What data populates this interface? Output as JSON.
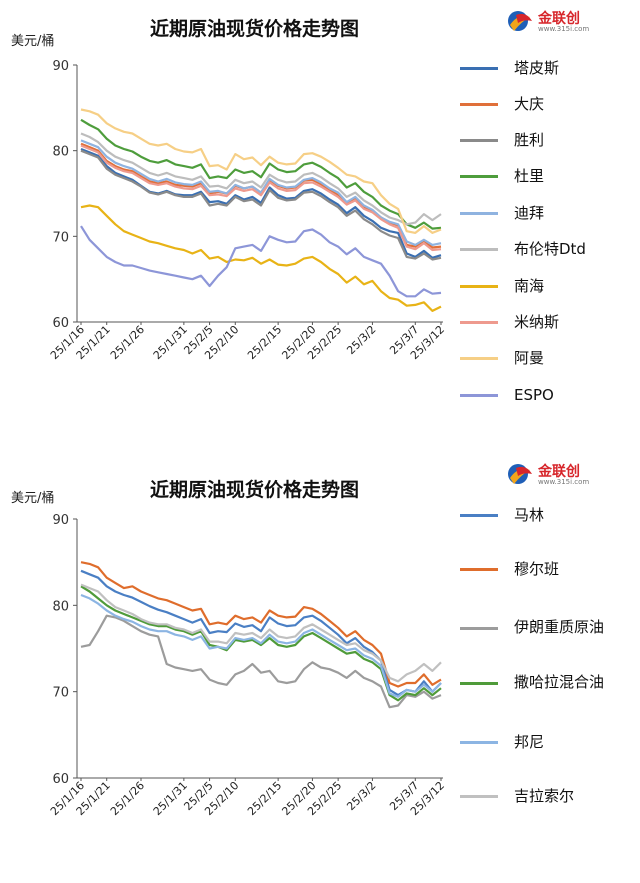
{
  "palette": {
    "tapis": "#3a6fb2",
    "daqing": "#e0703a",
    "shengli": "#8a8a8a",
    "duri": "#4e9d3c",
    "dubai": "#8fb3e0",
    "brent": "#bdbdbd",
    "nanhai": "#e8b316",
    "minas": "#ee9a8e",
    "oman": "#f6cf86",
    "espo": "#8d96d8",
    "marlin": "#4a7fc4",
    "murban": "#df6d2c",
    "iran_heavy": "#9c9c9c",
    "saharan": "#4f9b3a",
    "bonny": "#8cb5e3",
    "girassol": "#c0c0c0"
  },
  "top_chart": {
    "title": "近期原油现货价格走势图",
    "unit": "美元/桶",
    "logo_text": "金联创",
    "logo_sub": "www.315i.com"
  },
  "bottom_chart": {
    "title": "近期原油现货价格走势图",
    "unit": "美元/桶",
    "logo_text": "金联创",
    "logo_sub": "www.315i.com"
  },
  "chart_data": [
    {
      "type": "line",
      "title": "近期原油现货价格走势图",
      "ylabel": "美元/桶",
      "ylim": [
        60,
        90
      ],
      "yticks": [
        60,
        70,
        80,
        90
      ],
      "grid": false,
      "legend_position": "right",
      "x": [
        "25/1/16",
        "25/1/17",
        "25/1/20",
        "25/1/21",
        "25/1/22",
        "25/1/23",
        "25/1/24",
        "25/1/26",
        "25/1/27",
        "25/1/28",
        "25/1/29",
        "25/1/30",
        "25/1/31",
        "25/2/3",
        "25/2/4",
        "25/2/5",
        "25/2/6",
        "25/2/7",
        "25/2/10",
        "25/2/11",
        "25/2/12",
        "25/2/13",
        "25/2/14",
        "25/2/15",
        "25/2/17",
        "25/2/18",
        "25/2/19",
        "25/2/20",
        "25/2/21",
        "25/2/24",
        "25/2/25",
        "25/2/26",
        "25/2/27",
        "25/2/28",
        "25/3/2",
        "25/3/3",
        "25/3/4",
        "25/3/5",
        "25/3/6",
        "25/3/7",
        "25/3/10",
        "25/3/11",
        "25/3/12"
      ],
      "x_tick_labels": [
        "25/1/16",
        "25/1/21",
        "25/1/26",
        "25/1/31",
        "25/2/5",
        "25/2/10",
        "25/2/15",
        "25/2/20",
        "25/2/25",
        "25/3/2",
        "25/3/7",
        "25/3/12"
      ],
      "series": [
        {
          "name": "塔皮斯",
          "color_key": "tapis",
          "values": [
            80.2,
            79.8,
            79.4,
            78.2,
            77.4,
            77.0,
            76.6,
            75.9,
            75.2,
            75.0,
            75.3,
            74.9,
            74.8,
            74.8,
            75.2,
            74.0,
            74.1,
            73.8,
            74.8,
            74.3,
            74.6,
            73.9,
            75.7,
            74.8,
            74.4,
            74.5,
            75.3,
            75.5,
            75.0,
            74.3,
            73.7,
            72.7,
            73.4,
            72.4,
            71.8,
            71.0,
            70.6,
            70.4,
            68.0,
            67.6,
            68.3,
            67.5,
            67.8
          ]
        },
        {
          "name": "大庆",
          "color_key": "daqing",
          "values": [
            80.8,
            80.4,
            80.0,
            78.8,
            78.2,
            77.8,
            77.6,
            77.0,
            76.4,
            76.2,
            76.4,
            76.0,
            75.9,
            75.8,
            76.2,
            75.0,
            75.2,
            75.0,
            75.9,
            75.6,
            75.8,
            75.1,
            76.6,
            75.9,
            75.6,
            75.7,
            76.5,
            76.6,
            76.1,
            75.4,
            74.8,
            73.9,
            74.5,
            73.4,
            73.0,
            72.2,
            71.6,
            71.3,
            69.0,
            68.8,
            69.5,
            68.7,
            68.8
          ]
        },
        {
          "name": "胜利",
          "color_key": "shengli",
          "values": [
            80.0,
            79.6,
            79.2,
            77.9,
            77.2,
            76.8,
            76.4,
            75.8,
            75.1,
            74.9,
            75.2,
            74.8,
            74.6,
            74.6,
            75.0,
            73.6,
            73.8,
            73.6,
            74.6,
            74.1,
            74.3,
            73.6,
            75.4,
            74.5,
            74.2,
            74.3,
            75.1,
            75.2,
            74.7,
            74.0,
            73.4,
            72.4,
            73.0,
            72.0,
            71.4,
            70.6,
            70.1,
            69.8,
            67.6,
            67.4,
            68.0,
            67.3,
            67.5
          ]
        },
        {
          "name": "杜里",
          "color_key": "duri",
          "values": [
            83.6,
            83.0,
            82.5,
            81.4,
            80.6,
            80.2,
            79.9,
            79.3,
            78.8,
            78.6,
            78.9,
            78.4,
            78.2,
            78.0,
            78.4,
            76.8,
            77.0,
            76.8,
            77.8,
            77.4,
            77.6,
            76.9,
            78.5,
            77.8,
            77.5,
            77.6,
            78.4,
            78.6,
            78.1,
            77.4,
            76.8,
            75.7,
            76.2,
            75.2,
            74.6,
            73.6,
            73.0,
            72.6,
            71.4,
            71.0,
            71.6,
            70.9,
            71.0
          ]
        },
        {
          "name": "迪拜",
          "color_key": "dubai",
          "values": [
            81.2,
            80.8,
            80.4,
            79.3,
            78.6,
            78.2,
            77.9,
            77.3,
            76.7,
            76.4,
            76.7,
            76.3,
            76.1,
            76.0,
            76.4,
            75.2,
            75.3,
            75.0,
            76.0,
            75.6,
            75.8,
            75.1,
            76.7,
            76.0,
            75.7,
            75.8,
            76.6,
            76.8,
            76.3,
            75.6,
            75.1,
            74.0,
            74.6,
            73.6,
            73.1,
            72.2,
            71.7,
            71.4,
            69.4,
            69.0,
            69.6,
            69.0,
            69.2
          ]
        },
        {
          "name": "布伦特Dtd",
          "color_key": "brent",
          "values": [
            82.0,
            81.6,
            81.0,
            80.0,
            79.3,
            78.9,
            78.6,
            78.0,
            77.4,
            77.1,
            77.4,
            77.0,
            76.8,
            76.6,
            77.0,
            75.8,
            75.9,
            75.6,
            76.6,
            76.2,
            76.4,
            75.7,
            77.2,
            76.6,
            76.3,
            76.4,
            77.2,
            77.4,
            76.9,
            76.2,
            75.6,
            74.6,
            75.1,
            74.2,
            73.6,
            72.8,
            72.2,
            71.9,
            71.4,
            71.6,
            72.6,
            71.9,
            72.6
          ]
        },
        {
          "name": "南海",
          "color_key": "nanhai",
          "values": [
            73.4,
            73.6,
            73.4,
            72.4,
            71.4,
            70.6,
            70.2,
            69.8,
            69.4,
            69.2,
            68.9,
            68.6,
            68.4,
            68.0,
            68.4,
            67.4,
            67.6,
            67.0,
            67.3,
            67.2,
            67.5,
            66.8,
            67.3,
            66.7,
            66.6,
            66.8,
            67.4,
            67.6,
            67.0,
            66.2,
            65.6,
            64.6,
            65.3,
            64.4,
            64.8,
            63.6,
            62.8,
            62.6,
            61.9,
            62.0,
            62.3,
            61.3,
            61.8
          ]
        },
        {
          "name": "米纳斯",
          "color_key": "minas",
          "values": [
            80.6,
            80.2,
            79.8,
            78.6,
            78.0,
            77.6,
            77.4,
            76.8,
            76.2,
            76.0,
            76.2,
            75.8,
            75.6,
            75.5,
            75.9,
            74.8,
            74.9,
            74.7,
            75.6,
            75.3,
            75.5,
            74.8,
            76.3,
            75.6,
            75.3,
            75.4,
            76.2,
            76.3,
            75.8,
            75.2,
            74.6,
            73.7,
            74.2,
            73.2,
            72.8,
            72.0,
            71.4,
            71.0,
            68.8,
            68.5,
            69.2,
            68.4,
            68.5
          ]
        },
        {
          "name": "阿曼",
          "color_key": "oman",
          "values": [
            84.8,
            84.6,
            84.2,
            83.2,
            82.6,
            82.2,
            82.0,
            81.4,
            80.8,
            80.6,
            80.8,
            80.2,
            79.9,
            79.8,
            80.2,
            78.2,
            78.3,
            77.8,
            79.6,
            79.0,
            79.2,
            78.3,
            79.3,
            78.6,
            78.4,
            78.5,
            79.6,
            79.7,
            79.3,
            78.7,
            78.0,
            77.2,
            77.0,
            76.4,
            76.2,
            74.8,
            73.8,
            73.2,
            70.6,
            70.4,
            71.2,
            70.4,
            70.8
          ]
        },
        {
          "name": "ESPO",
          "color_key": "espo",
          "values": [
            71.2,
            69.6,
            68.6,
            67.6,
            67.0,
            66.6,
            66.6,
            66.3,
            66.0,
            65.8,
            65.6,
            65.4,
            65.2,
            65.0,
            65.4,
            64.2,
            65.4,
            66.4,
            68.6,
            68.8,
            69.0,
            68.3,
            70.0,
            69.6,
            69.3,
            69.4,
            70.6,
            70.8,
            70.2,
            69.3,
            68.8,
            67.9,
            68.6,
            67.6,
            67.2,
            66.8,
            65.4,
            63.6,
            63.0,
            63.0,
            63.8,
            63.3,
            63.4
          ]
        }
      ]
    },
    {
      "type": "line",
      "title": "近期原油现货价格走势图",
      "ylabel": "美元/桶",
      "ylim": [
        60,
        90
      ],
      "yticks": [
        60,
        70,
        80,
        90
      ],
      "grid": false,
      "legend_position": "right",
      "x": [
        "25/1/16",
        "25/1/17",
        "25/1/20",
        "25/1/21",
        "25/1/22",
        "25/1/23",
        "25/1/24",
        "25/1/26",
        "25/1/27",
        "25/1/28",
        "25/1/29",
        "25/1/30",
        "25/1/31",
        "25/2/3",
        "25/2/4",
        "25/2/5",
        "25/2/6",
        "25/2/7",
        "25/2/10",
        "25/2/11",
        "25/2/12",
        "25/2/13",
        "25/2/14",
        "25/2/15",
        "25/2/17",
        "25/2/18",
        "25/2/19",
        "25/2/20",
        "25/2/21",
        "25/2/24",
        "25/2/25",
        "25/2/26",
        "25/2/27",
        "25/2/28",
        "25/3/2",
        "25/3/3",
        "25/3/4",
        "25/3/5",
        "25/3/6",
        "25/3/7",
        "25/3/10",
        "25/3/11",
        "25/3/12"
      ],
      "x_tick_labels": [
        "25/1/16",
        "25/1/21",
        "25/1/26",
        "25/1/31",
        "25/2/5",
        "25/2/10",
        "25/2/15",
        "25/2/20",
        "25/2/25",
        "25/3/2",
        "25/3/7",
        "25/3/12"
      ],
      "series": [
        {
          "name": "马林",
          "color_key": "marlin",
          "values": [
            84.0,
            83.6,
            83.2,
            82.2,
            81.6,
            81.2,
            80.9,
            80.4,
            79.9,
            79.5,
            79.2,
            78.8,
            78.4,
            78.0,
            78.4,
            76.8,
            77.0,
            76.9,
            77.9,
            77.5,
            77.7,
            77.0,
            78.6,
            77.9,
            77.6,
            77.7,
            78.6,
            78.8,
            78.2,
            77.4,
            76.6,
            75.6,
            76.2,
            75.2,
            74.6,
            73.6,
            70.2,
            69.6,
            70.2,
            70.0,
            71.2,
            70.0,
            71.0
          ]
        },
        {
          "name": "穆尔班",
          "color_key": "murban",
          "values": [
            85.0,
            84.8,
            84.4,
            83.2,
            82.6,
            82.0,
            82.2,
            81.6,
            81.2,
            80.8,
            80.6,
            80.2,
            79.8,
            79.4,
            79.6,
            77.8,
            78.0,
            77.8,
            78.8,
            78.4,
            78.6,
            78.0,
            79.4,
            78.8,
            78.6,
            78.7,
            79.8,
            79.6,
            79.0,
            78.2,
            77.4,
            76.4,
            77.0,
            76.0,
            75.4,
            74.4,
            71.0,
            70.6,
            71.0,
            71.0,
            72.0,
            70.8,
            71.4
          ]
        },
        {
          "name": "伊朗重质原油",
          "color_key": "iran_heavy",
          "values": [
            75.2,
            75.4,
            77.0,
            78.8,
            78.6,
            78.2,
            77.6,
            77.0,
            76.6,
            76.4,
            73.2,
            72.8,
            72.6,
            72.4,
            72.6,
            71.4,
            71.0,
            70.8,
            72.0,
            72.4,
            73.2,
            72.2,
            72.4,
            71.2,
            71.0,
            71.2,
            72.6,
            73.4,
            72.8,
            72.6,
            72.2,
            71.6,
            72.4,
            71.6,
            71.2,
            70.6,
            68.2,
            68.4,
            69.6,
            69.4,
            70.0,
            69.2,
            69.6
          ]
        },
        {
          "name": "撒哈拉混合油",
          "color_key": "saharan",
          "values": [
            82.2,
            81.6,
            80.8,
            80.0,
            79.4,
            79.0,
            78.6,
            78.2,
            77.8,
            77.6,
            77.6,
            77.2,
            77.0,
            76.6,
            77.0,
            75.4,
            75.2,
            74.8,
            76.0,
            75.8,
            76.0,
            75.4,
            76.2,
            75.4,
            75.2,
            75.4,
            76.4,
            76.8,
            76.2,
            75.6,
            75.0,
            74.4,
            74.6,
            73.8,
            73.4,
            72.6,
            69.6,
            69.0,
            69.8,
            69.6,
            70.4,
            69.6,
            70.4
          ]
        },
        {
          "name": "邦尼",
          "color_key": "bonny",
          "values": [
            81.2,
            80.8,
            80.2,
            79.4,
            78.8,
            78.4,
            78.1,
            77.6,
            77.2,
            77.0,
            77.0,
            76.6,
            76.4,
            76.0,
            76.4,
            75.0,
            75.2,
            75.0,
            76.2,
            76.0,
            76.2,
            75.6,
            76.6,
            75.8,
            75.6,
            75.8,
            76.8,
            77.2,
            76.6,
            76.0,
            75.4,
            74.8,
            75.0,
            74.2,
            73.8,
            73.0,
            69.8,
            69.4,
            70.2,
            70.0,
            70.8,
            70.0,
            71.0
          ]
        },
        {
          "name": "吉拉索尔",
          "color_key": "girassol",
          "values": [
            82.4,
            82.0,
            81.6,
            80.6,
            79.8,
            79.4,
            79.0,
            78.4,
            78.0,
            77.8,
            77.8,
            77.4,
            77.2,
            76.8,
            77.2,
            75.8,
            75.8,
            75.6,
            76.8,
            76.6,
            76.8,
            76.2,
            77.2,
            76.4,
            76.2,
            76.4,
            77.4,
            77.8,
            77.2,
            76.6,
            76.0,
            75.4,
            75.6,
            74.8,
            74.4,
            73.6,
            71.6,
            71.2,
            72.0,
            72.4,
            73.2,
            72.4,
            73.4
          ]
        }
      ]
    }
  ]
}
